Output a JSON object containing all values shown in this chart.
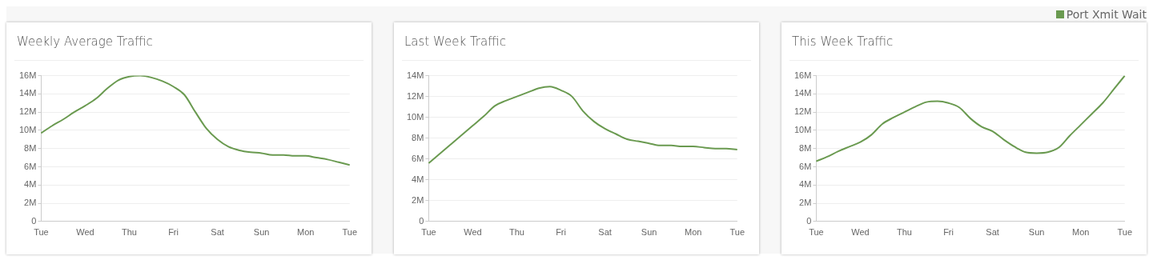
{
  "chart_data": [
    {
      "type": "line",
      "title": "Weekly Average Traffic",
      "categories": [
        "Tue",
        null,
        null,
        null,
        "Wed",
        null,
        null,
        null,
        "Thu",
        null,
        null,
        null,
        "Fri",
        null,
        null,
        null,
        "Sat",
        null,
        null,
        null,
        "Sun",
        null,
        null,
        null,
        "Mon",
        null,
        null,
        null,
        "Tue"
      ],
      "series": [
        {
          "color": "#6a9a50",
          "values": [
            9.7,
            10.5,
            11.2,
            12.0,
            12.7,
            13.5,
            14.6,
            15.5,
            15.9,
            16.0,
            15.8,
            15.4,
            14.8,
            13.9,
            12.0,
            10.2,
            9.0,
            8.2,
            7.8,
            7.6,
            7.5,
            7.3,
            7.3,
            7.2,
            7.2,
            7.0,
            6.8,
            6.5,
            6.2
          ]
        }
      ],
      "ylim": [
        0,
        16
      ],
      "yticks": [
        {
          "value": 0,
          "label": "0"
        },
        {
          "value": 2,
          "label": "2M"
        },
        {
          "value": 4,
          "label": "4M"
        },
        {
          "value": 6,
          "label": "6M"
        },
        {
          "value": 8,
          "label": "8M"
        },
        {
          "value": 10,
          "label": "10M"
        },
        {
          "value": 12,
          "label": "12M"
        },
        {
          "value": 14,
          "label": "14M"
        },
        {
          "value": 16,
          "label": "16M"
        }
      ],
      "grid": "y",
      "legend": false
    },
    {
      "type": "line",
      "title": "Last Week Traffic",
      "categories": [
        "Tue",
        null,
        null,
        null,
        "Wed",
        null,
        null,
        null,
        "Thu",
        null,
        null,
        null,
        "Fri",
        null,
        null,
        null,
        "Sat",
        null,
        null,
        null,
        "Sun",
        null,
        null,
        null,
        "Mon",
        null,
        null,
        null,
        "Tue"
      ],
      "series": [
        {
          "color": "#6a9a50",
          "values": [
            5.6,
            6.5,
            7.4,
            8.3,
            9.2,
            10.1,
            11.1,
            11.6,
            12.0,
            12.4,
            12.8,
            12.95,
            12.6,
            12.0,
            10.6,
            9.6,
            8.9,
            8.4,
            7.9,
            7.7,
            7.5,
            7.3,
            7.3,
            7.2,
            7.2,
            7.1,
            7.0,
            7.0,
            6.9
          ]
        }
      ],
      "ylim": [
        0,
        14
      ],
      "yticks": [
        {
          "value": 0,
          "label": "0"
        },
        {
          "value": 2,
          "label": "2M"
        },
        {
          "value": 4,
          "label": "4M"
        },
        {
          "value": 6,
          "label": "6M"
        },
        {
          "value": 8,
          "label": "8M"
        },
        {
          "value": 10,
          "label": "10M"
        },
        {
          "value": 12,
          "label": "12M"
        },
        {
          "value": 14,
          "label": "14M"
        }
      ],
      "grid": "y",
      "legend": false
    },
    {
      "type": "line",
      "title": "This Week Traffic",
      "categories": [
        "Tue",
        null,
        null,
        null,
        "Wed",
        null,
        null,
        null,
        "Thu",
        null,
        null,
        null,
        "Fri",
        null,
        null,
        null,
        "Sat",
        null,
        null,
        null,
        "Sun",
        null,
        null,
        null,
        "Mon",
        null,
        null,
        null,
        "Tue"
      ],
      "series": [
        {
          "name": "Port Xmit Wait",
          "color": "#6a9a50",
          "values": [
            6.6,
            7.1,
            7.7,
            8.2,
            8.7,
            9.5,
            10.7,
            11.4,
            12.0,
            12.6,
            13.1,
            13.2,
            13.0,
            12.5,
            11.3,
            10.4,
            9.9,
            9.0,
            8.2,
            7.6,
            7.5,
            7.6,
            8.1,
            9.4,
            10.6,
            11.8,
            13.0,
            14.5,
            16.0
          ]
        }
      ],
      "ylim": [
        0,
        16
      ],
      "yticks": [
        {
          "value": 0,
          "label": "0"
        },
        {
          "value": 2,
          "label": "2M"
        },
        {
          "value": 4,
          "label": "4M"
        },
        {
          "value": 6,
          "label": "6M"
        },
        {
          "value": 8,
          "label": "8M"
        },
        {
          "value": 10,
          "label": "10M"
        },
        {
          "value": 12,
          "label": "12M"
        },
        {
          "value": 14,
          "label": "14M"
        },
        {
          "value": 16,
          "label": "16M"
        }
      ],
      "grid": "y",
      "legend": "top right"
    }
  ]
}
